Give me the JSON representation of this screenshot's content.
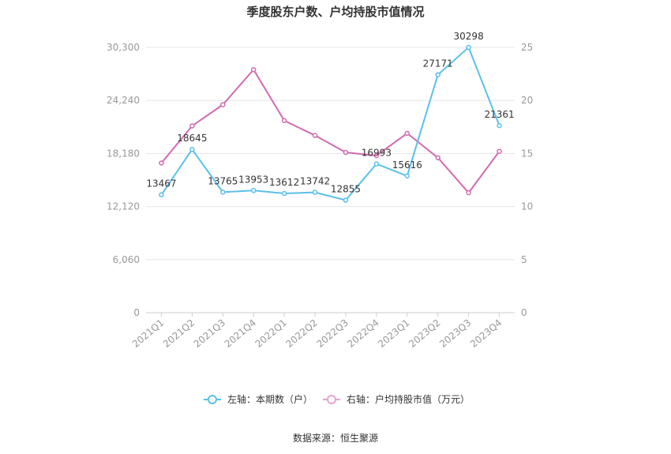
{
  "chart_data": {
    "type": "line",
    "title": "季度股东户数、户均持股市值情况",
    "categories": [
      "2021Q1",
      "2021Q2",
      "2021Q3",
      "2021Q4",
      "2022Q1",
      "2022Q2",
      "2022Q3",
      "2022Q4",
      "2023Q1",
      "2023Q2",
      "2023Q3",
      "2023Q4"
    ],
    "y_left": {
      "ticks": [
        "0",
        "6,060",
        "12,120",
        "18,180",
        "24,240",
        "30,300"
      ],
      "ylim": [
        0,
        30300
      ]
    },
    "y_right": {
      "ticks": [
        "0",
        "5",
        "10",
        "15",
        "20",
        "25"
      ],
      "ylim": [
        0,
        25
      ]
    },
    "series": [
      {
        "name": "左轴：本期数（户）",
        "axis": "left",
        "color": "#5BC0EB",
        "values": [
          13467,
          18645,
          13765,
          13953,
          13612,
          13742,
          12855,
          16993,
          15616,
          27171,
          30298,
          21361
        ],
        "labels": [
          "13467",
          "18645",
          "13765",
          "13953",
          "13612",
          "13742",
          "12855",
          "16993",
          "15616",
          "27171",
          "30298",
          "21361"
        ]
      },
      {
        "name": "右轴：户均持股市值（万元）",
        "axis": "right",
        "color": "#D16BB0",
        "values": [
          14.1,
          17.6,
          19.6,
          22.9,
          18.1,
          16.7,
          15.1,
          14.8,
          16.9,
          14.6,
          11.3,
          15.2
        ]
      }
    ],
    "grid": true,
    "legend_position": "bottom"
  },
  "source": "数据来源：恒生聚源"
}
